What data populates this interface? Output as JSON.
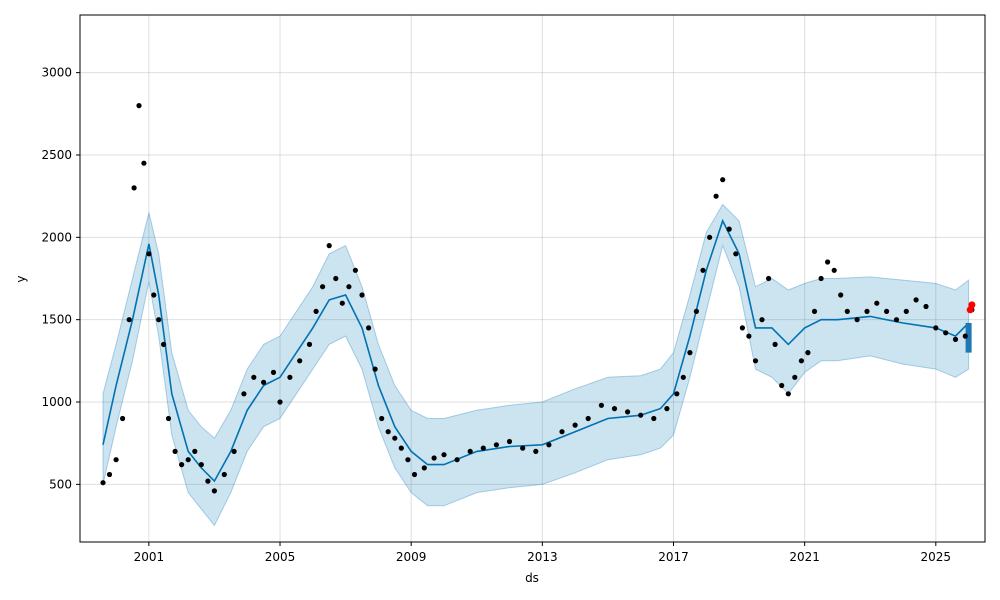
{
  "chart_data": {
    "type": "scatter",
    "title": "",
    "xlabel": "ds",
    "ylabel": "y",
    "x_tick_labels": [
      "2001",
      "2005",
      "2009",
      "2013",
      "2017",
      "2021",
      "2025"
    ],
    "x_ticks": [
      2001,
      2005,
      2009,
      2013,
      2017,
      2021,
      2025
    ],
    "y_tick_labels": [
      "500",
      "1000",
      "1500",
      "2000",
      "2500",
      "3000"
    ],
    "y_ticks": [
      500,
      1000,
      1500,
      2000,
      2500,
      3000
    ],
    "xlim": [
      1998.9,
      2026.5
    ],
    "ylim": [
      150,
      3350
    ],
    "grid": true,
    "legend": "none",
    "colors": {
      "observed": "#000000",
      "forecast_line": "#0072B2",
      "uncertainty_band": "#0072B2",
      "highlight": "#ff0000",
      "forecast_tail": "#1f77b4"
    },
    "series": [
      {
        "role": "observed",
        "x": [
          1999.6,
          1999.8,
          2000.0,
          2000.2,
          2000.4,
          2000.55,
          2000.7,
          2000.85,
          2001.0,
          2001.15,
          2001.3,
          2001.45,
          2001.6,
          2001.8,
          2002.0,
          2002.2,
          2002.4,
          2002.6,
          2002.8,
          2003.0,
          2003.3,
          2003.6,
          2003.9,
          2004.2,
          2004.5,
          2004.8,
          2005.0,
          2005.3,
          2005.6,
          2005.9,
          2006.1,
          2006.3,
          2006.5,
          2006.7,
          2006.9,
          2007.1,
          2007.3,
          2007.5,
          2007.7,
          2007.9,
          2008.1,
          2008.3,
          2008.5,
          2008.7,
          2008.9,
          2009.1,
          2009.4,
          2009.7,
          2010.0,
          2010.4,
          2010.8,
          2011.2,
          2011.6,
          2012.0,
          2012.4,
          2012.8,
          2013.2,
          2013.6,
          2014.0,
          2014.4,
          2014.8,
          2015.2,
          2015.6,
          2016.0,
          2016.4,
          2016.8,
          2017.1,
          2017.3,
          2017.5,
          2017.7,
          2017.9,
          2018.1,
          2018.3,
          2018.5,
          2018.7,
          2018.9,
          2019.1,
          2019.3,
          2019.5,
          2019.7,
          2019.9,
          2020.1,
          2020.3,
          2020.5,
          2020.7,
          2020.9,
          2021.1,
          2021.3,
          2021.5,
          2021.7,
          2021.9,
          2022.1,
          2022.3,
          2022.6,
          2022.9,
          2023.2,
          2023.5,
          2023.8,
          2024.1,
          2024.4,
          2024.7,
          2025.0,
          2025.3,
          2025.6,
          2025.9,
          2026.1
        ],
        "y": [
          510,
          560,
          650,
          900,
          1500,
          2300,
          2800,
          2450,
          1900,
          1650,
          1500,
          1350,
          900,
          700,
          620,
          650,
          700,
          620,
          520,
          460,
          560,
          700,
          1050,
          1150,
          1120,
          1180,
          1000,
          1150,
          1250,
          1350,
          1550,
          1700,
          1950,
          1750,
          1600,
          1700,
          1800,
          1650,
          1450,
          1200,
          900,
          820,
          780,
          720,
          650,
          560,
          600,
          660,
          680,
          650,
          700,
          720,
          740,
          760,
          720,
          700,
          740,
          820,
          860,
          900,
          980,
          960,
          940,
          920,
          900,
          960,
          1050,
          1150,
          1300,
          1550,
          1800,
          2000,
          2250,
          2350,
          2050,
          1900,
          1450,
          1400,
          1250,
          1500,
          1750,
          1350,
          1100,
          1050,
          1150,
          1250,
          1300,
          1550,
          1750,
          1850,
          1800,
          1650,
          1550,
          1500,
          1550,
          1600,
          1550,
          1500,
          1550,
          1620,
          1580,
          1450,
          1420,
          1380,
          1400,
          1560
        ]
      },
      {
        "role": "forecast",
        "x": [
          1999.6,
          2000.0,
          2000.5,
          2001.0,
          2001.3,
          2001.7,
          2002.2,
          2002.6,
          2003.0,
          2003.5,
          2004.0,
          2004.5,
          2005.0,
          2005.5,
          2006.0,
          2006.5,
          2007.0,
          2007.5,
          2008.0,
          2008.5,
          2009.0,
          2009.5,
          2010.0,
          2011.0,
          2012.0,
          2013.0,
          2014.0,
          2015.0,
          2016.0,
          2016.6,
          2017.0,
          2017.5,
          2018.0,
          2018.5,
          2019.0,
          2019.5,
          2020.0,
          2020.5,
          2021.0,
          2021.5,
          2022.0,
          2023.0,
          2024.0,
          2025.0,
          2025.6,
          2026.0
        ],
        "y": [
          740,
          1100,
          1500,
          1960,
          1650,
          1050,
          700,
          600,
          520,
          700,
          950,
          1100,
          1150,
          1300,
          1450,
          1620,
          1650,
          1450,
          1100,
          850,
          700,
          620,
          620,
          700,
          730,
          740,
          820,
          900,
          920,
          960,
          1050,
          1400,
          1800,
          2100,
          1900,
          1450,
          1450,
          1350,
          1450,
          1500,
          1500,
          1520,
          1480,
          1450,
          1400,
          1480
        ],
        "upper": [
          1050,
          1350,
          1750,
          2150,
          1900,
          1300,
          950,
          850,
          780,
          950,
          1200,
          1350,
          1400,
          1550,
          1700,
          1900,
          1950,
          1700,
          1350,
          1100,
          950,
          900,
          900,
          950,
          980,
          1000,
          1080,
          1150,
          1160,
          1200,
          1300,
          1650,
          2030,
          2200,
          2100,
          1700,
          1750,
          1680,
          1720,
          1750,
          1750,
          1760,
          1740,
          1720,
          1680,
          1740
        ],
        "lower": [
          500,
          850,
          1250,
          1730,
          1400,
          800,
          450,
          350,
          250,
          450,
          700,
          850,
          900,
          1050,
          1200,
          1350,
          1400,
          1200,
          850,
          600,
          450,
          370,
          370,
          450,
          480,
          500,
          570,
          650,
          680,
          720,
          800,
          1150,
          1550,
          1950,
          1700,
          1200,
          1150,
          1050,
          1180,
          1250,
          1250,
          1280,
          1230,
          1200,
          1150,
          1200
        ]
      }
    ],
    "highlight_points": {
      "x": [
        2026.05,
        2026.1
      ],
      "y": [
        1560,
        1590
      ]
    }
  }
}
